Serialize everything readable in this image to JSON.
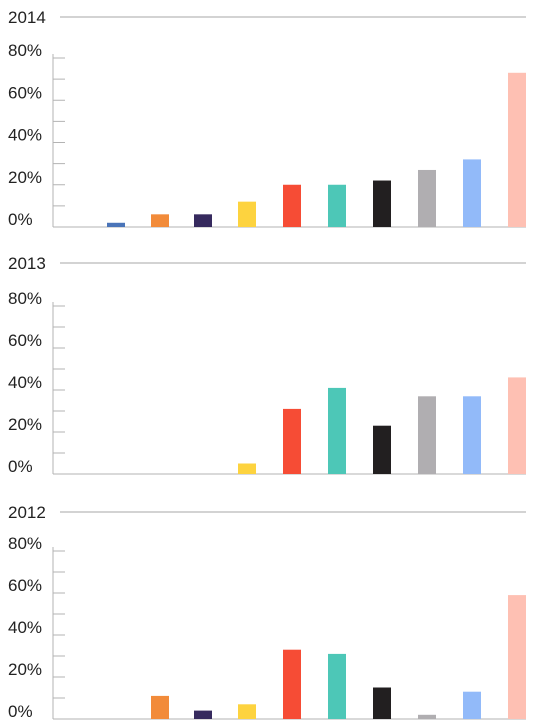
{
  "chart_data": [
    {
      "type": "bar",
      "title": "2014",
      "ylim": [
        0,
        80
      ],
      "yticks": [
        "80%",
        "60%",
        "40%",
        "20%",
        "0%"
      ],
      "values": [
        2,
        6,
        6,
        12,
        20,
        20,
        22,
        27,
        32,
        73
      ]
    },
    {
      "type": "bar",
      "title": "2013",
      "ylim": [
        0,
        80
      ],
      "yticks": [
        "80%",
        "60%",
        "40%",
        "20%",
        "0%"
      ],
      "values": [
        0,
        0,
        0,
        5,
        31,
        41,
        23,
        37,
        37,
        46
      ]
    },
    {
      "type": "bar",
      "title": "2012",
      "ylim": [
        0,
        80
      ],
      "yticks": [
        "80%",
        "60%",
        "40%",
        "20%",
        "0%"
      ],
      "values": [
        0,
        11,
        4,
        7,
        33,
        31,
        15,
        2,
        13,
        59
      ]
    }
  ],
  "colors": [
    "#4a74b8",
    "#f28b3a",
    "#362a5e",
    "#fdd33f",
    "#f64c35",
    "#4dc7b7",
    "#221f20",
    "#b0aeb1",
    "#92baf9",
    "#fec0b3"
  ]
}
